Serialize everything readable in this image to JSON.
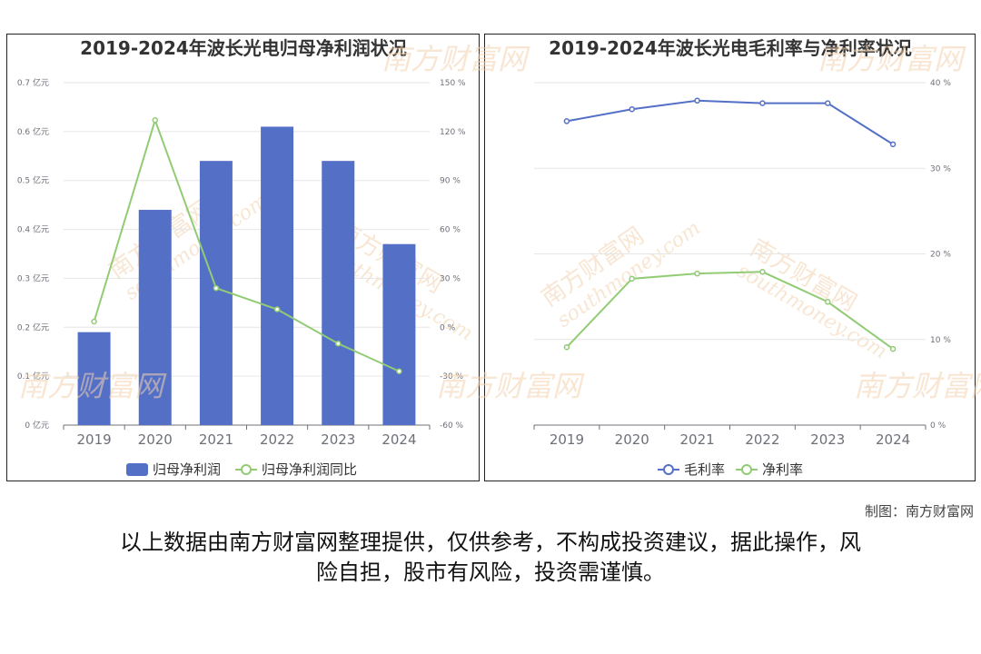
{
  "watermark": {
    "brand_cn": "南方财富网",
    "brand_en": "southmoney.com"
  },
  "source_label": "制图：南方财富网",
  "disclaimer_line1": "以上数据由南方财富网整理提供，仅供参考，不构成投资建议，据此操作，风",
  "disclaimer_line2": "险自担，股市有风险，投资需谨慎。",
  "colors": {
    "bar": "#5470c6",
    "line_green": "#91cc75",
    "line_blue": "#5470c6",
    "grid": "#e6e6e6",
    "axis_text": "#6e7079"
  },
  "chart_data": [
    {
      "type": "bar",
      "title": "2019-2024年波长光电归母净利润状况",
      "categories": [
        "2019",
        "2020",
        "2021",
        "2022",
        "2023",
        "2024"
      ],
      "series": [
        {
          "name": "归母净利润",
          "type": "bar",
          "axis": "left",
          "values": [
            0.19,
            0.44,
            0.54,
            0.61,
            0.54,
            0.37
          ]
        },
        {
          "name": "归母净利润同比",
          "type": "line",
          "axis": "right",
          "values": [
            3.5,
            127.0,
            24.0,
            11.0,
            -10.0,
            -27.0
          ]
        }
      ],
      "y_left": {
        "min": 0,
        "max": 0.7,
        "step": 0.1,
        "ticks": [
          "0 亿元",
          "0.1 亿元",
          "0.2 亿元",
          "0.3 亿元",
          "0.4 亿元",
          "0.5 亿元",
          "0.6 亿元",
          "0.7 亿元"
        ]
      },
      "y_right": {
        "min": -60,
        "max": 150,
        "step": 30,
        "ticks": [
          "-60 %",
          "-30 %",
          "0 %",
          "30 %",
          "60 %",
          "90 %",
          "120 %",
          "150 %"
        ]
      },
      "grid": true,
      "legend_position": "bottom"
    },
    {
      "type": "line",
      "title": "2019-2024年波长光电毛利率与净利率状况",
      "categories": [
        "2019",
        "2020",
        "2021",
        "2022",
        "2023",
        "2024"
      ],
      "series": [
        {
          "name": "毛利率",
          "values": [
            35.5,
            36.9,
            37.9,
            37.6,
            37.6,
            32.8
          ]
        },
        {
          "name": "净利率",
          "values": [
            9.1,
            17.1,
            17.7,
            17.9,
            14.4,
            8.9
          ]
        }
      ],
      "y_right": {
        "min": 0,
        "max": 40,
        "step": 10,
        "ticks": [
          "0 %",
          "10 %",
          "20 %",
          "30 %",
          "40 %"
        ]
      },
      "grid": true,
      "legend_position": "bottom"
    }
  ]
}
